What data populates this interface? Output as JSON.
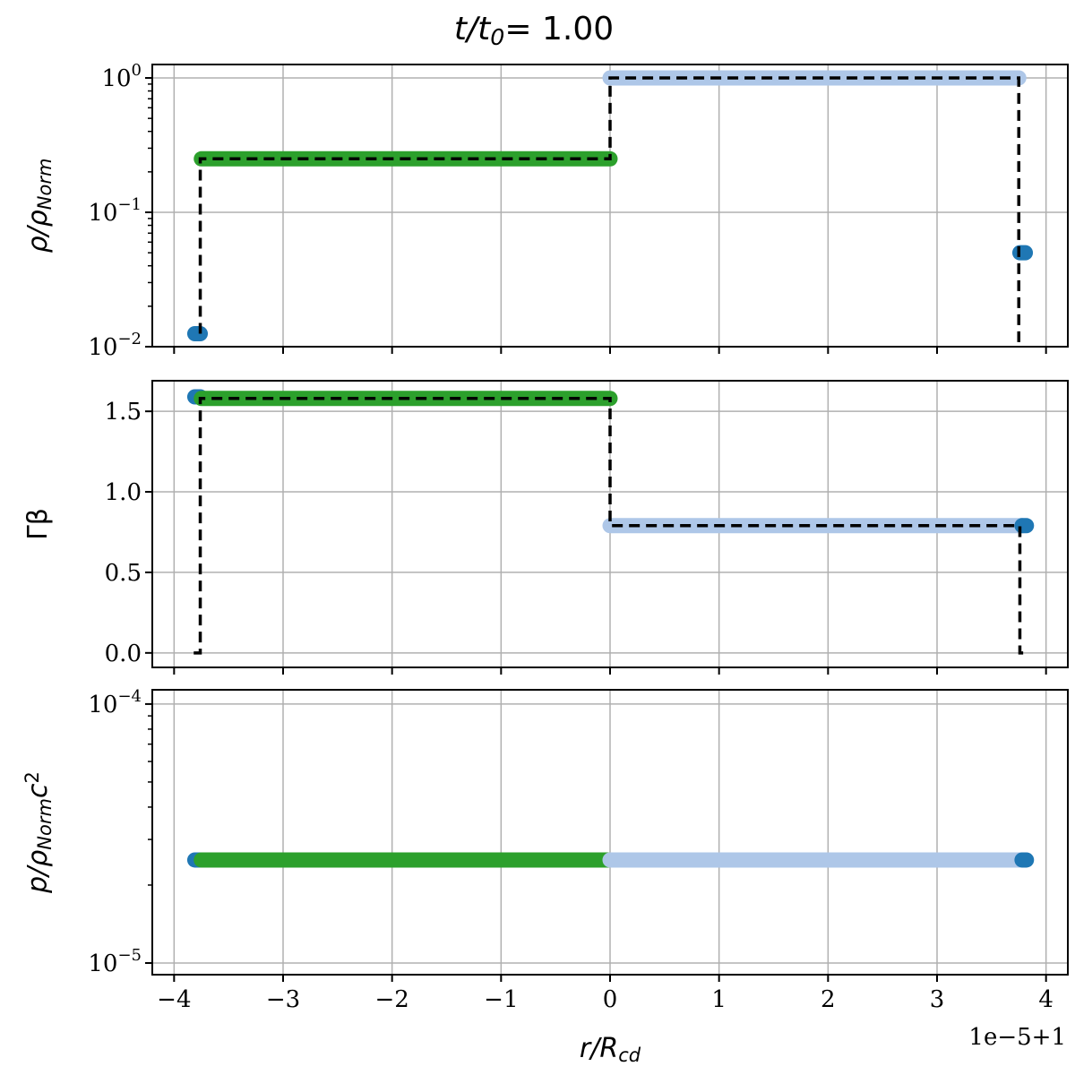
{
  "chart_data": {
    "type": "line",
    "title": [
      {
        "t": "t/t",
        "i": true
      },
      {
        "sub": "0"
      },
      {
        "t": " = 1.00"
      }
    ],
    "xlabel": [
      {
        "t": "r/R",
        "i": true
      },
      {
        "sub": "cd"
      }
    ],
    "x_offset_label": "1e−5+1",
    "xlim": [
      -4.2,
      4.2
    ],
    "xticks": [
      -4,
      -3,
      -2,
      -1,
      0,
      1,
      2,
      3,
      4
    ],
    "xticklabels": [
      "−4",
      "−3",
      "−2",
      "−1",
      "0",
      "1",
      "2",
      "3",
      "4"
    ],
    "grid": true,
    "colors": {
      "blue": "#1f77b4",
      "green": "#2ca02c",
      "lightblue": "#aec7e8",
      "dashed": "#000000",
      "grid": "#b0b0b0"
    },
    "panels": [
      {
        "ylabel": [
          {
            "t": "ρ/ρ",
            "i": true
          },
          {
            "sub": "Norm"
          }
        ],
        "yscale": "log",
        "ylim_log10": [
          -2.0,
          0.1
        ],
        "yticks_log10": [
          0,
          -1,
          -2
        ],
        "yticklabels": [
          {
            "b": "10",
            "e": "0"
          },
          {
            "b": "10",
            "e": "−1"
          },
          {
            "b": "10",
            "e": "−2"
          }
        ],
        "scatter": [
          {
            "color": "blue",
            "x": [
              -3.81,
              -3.76
            ],
            "y": [
              0.0125,
              0.0125
            ]
          },
          {
            "color": "green",
            "x": [
              -3.75,
              0.0
            ],
            "y": [
              0.25,
              0.25
            ]
          },
          {
            "color": "lightblue",
            "x": [
              0.0,
              3.75
            ],
            "y": [
              1.0,
              1.0
            ]
          },
          {
            "color": "blue",
            "x": [
              3.76,
              3.81
            ],
            "y": [
              0.05,
              0.05
            ]
          }
        ],
        "analytic": {
          "x": [
            -3.76,
            -3.76,
            0.0,
            0.0,
            3.75,
            3.75,
            3.75
          ],
          "y": [
            0.0125,
            0.25,
            0.25,
            1.0,
            1.0,
            0.05,
            0.001
          ]
        }
      },
      {
        "ylabel": [
          {
            "t": "Γβ",
            "i": false
          }
        ],
        "yscale": "linear",
        "ylim": [
          -0.09,
          1.69
        ],
        "yticks": [
          0.0,
          0.5,
          1.0,
          1.5
        ],
        "yticklabels": [
          "0.0",
          "0.5",
          "1.0",
          "1.5"
        ],
        "scatter": [
          {
            "color": "blue",
            "x": [
              -3.81,
              -3.76
            ],
            "y": [
              1.59,
              1.59
            ]
          },
          {
            "color": "green",
            "x": [
              -3.75,
              0.0
            ],
            "y": [
              1.58,
              1.58
            ]
          },
          {
            "color": "lightblue",
            "x": [
              0.0,
              3.78
            ],
            "y": [
              0.79,
              0.79
            ]
          },
          {
            "color": "blue",
            "x": [
              3.78,
              3.82
            ],
            "y": [
              0.79,
              0.79
            ]
          }
        ],
        "analytic": {
          "x": [
            -3.82,
            -3.76,
            -3.76,
            0.0,
            0.0,
            3.76,
            3.76,
            3.82
          ],
          "y": [
            0.0,
            0.0,
            1.58,
            1.58,
            0.79,
            0.79,
            0.0,
            0.0
          ]
        }
      },
      {
        "ylabel": [
          {
            "t": "p/ρ",
            "i": true
          },
          {
            "sub": "Norm"
          },
          {
            "t": "c",
            "i": true
          },
          {
            "sup": "2"
          }
        ],
        "yscale": "log",
        "ylim_log10": [
          -5.045,
          -3.945
        ],
        "yticks_log10": [
          -4,
          -5
        ],
        "yticklabels": [
          {
            "b": "10",
            "e": "−4"
          },
          {
            "b": "10",
            "e": "−5"
          }
        ],
        "scatter": [
          {
            "color": "blue",
            "x": [
              -3.81,
              -3.76
            ],
            "y": [
              2.5e-05,
              2.5e-05
            ]
          },
          {
            "color": "green",
            "x": [
              -3.75,
              0.0
            ],
            "y": [
              2.5e-05,
              2.5e-05
            ]
          },
          {
            "color": "lightblue",
            "x": [
              0.0,
              3.78
            ],
            "y": [
              2.5e-05,
              2.5e-05
            ]
          },
          {
            "color": "blue",
            "x": [
              3.78,
              3.82
            ],
            "y": [
              2.5e-05,
              2.5e-05
            ]
          }
        ],
        "analytic": null
      }
    ]
  }
}
